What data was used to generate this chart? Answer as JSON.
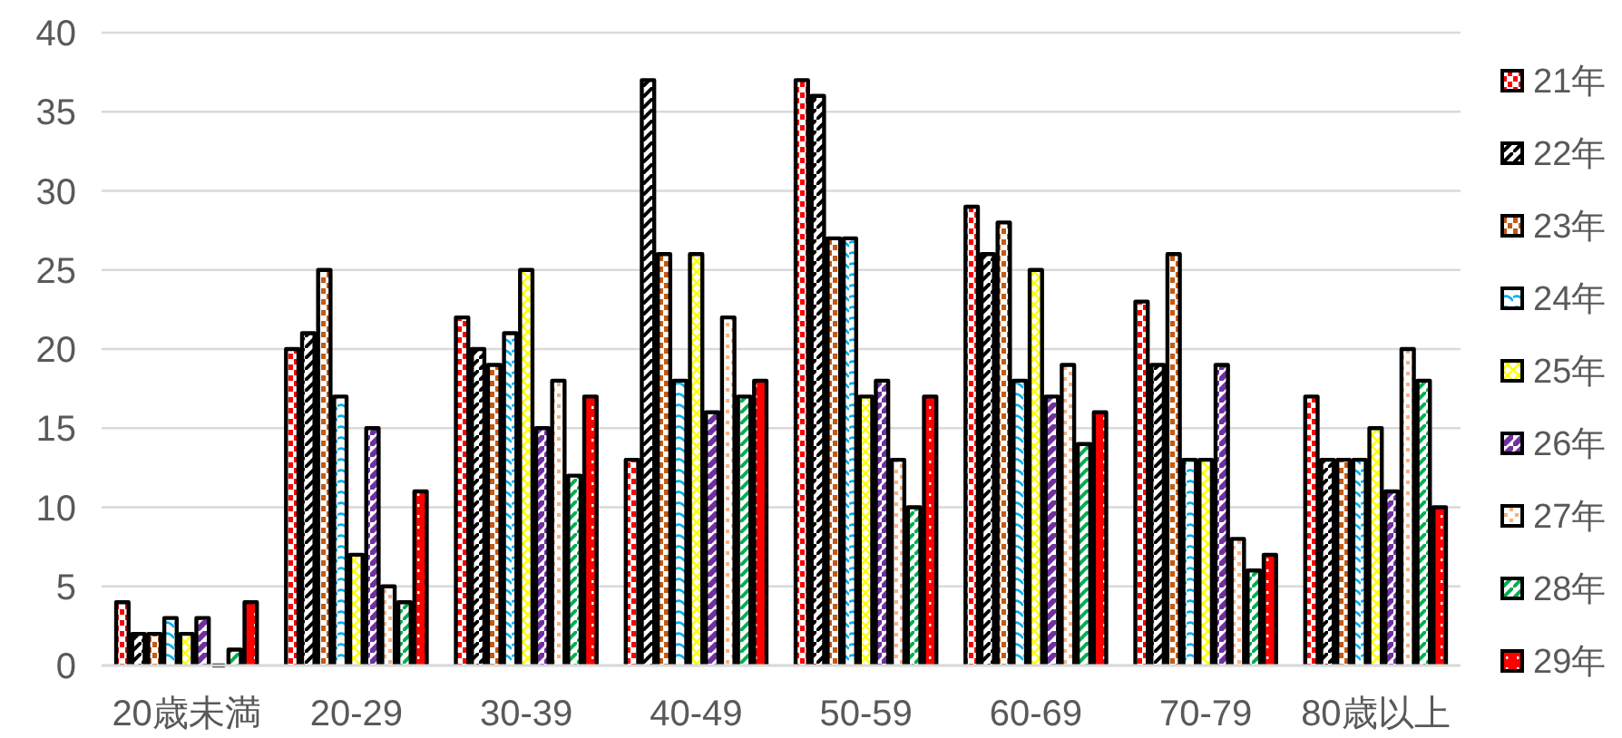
{
  "chart_data": {
    "type": "bar",
    "categories": [
      "20歳未満",
      "20-29",
      "30-39",
      "40-49",
      "50-59",
      "60-69",
      "70-79",
      "80歳以上"
    ],
    "series": [
      {
        "name": "21年",
        "color": "#ff0000",
        "values": [
          4,
          20,
          22,
          13,
          37,
          29,
          23,
          17
        ]
      },
      {
        "name": "22年",
        "color": "#000000",
        "values": [
          2,
          21,
          20,
          37,
          36,
          26,
          19,
          13
        ]
      },
      {
        "name": "23年",
        "color": "#c55a11",
        "values": [
          2,
          25,
          19,
          26,
          27,
          28,
          26,
          13
        ]
      },
      {
        "name": "24年",
        "color": "#00b0f0",
        "values": [
          3,
          17,
          21,
          18,
          27,
          18,
          13,
          13
        ]
      },
      {
        "name": "25年",
        "color": "#ffff00",
        "values": [
          2,
          7,
          25,
          26,
          17,
          25,
          13,
          15
        ]
      },
      {
        "name": "26年",
        "color": "#7030a0",
        "values": [
          3,
          15,
          15,
          16,
          18,
          17,
          19,
          11
        ]
      },
      {
        "name": "27年",
        "color": "#f4b183",
        "values": [
          0,
          5,
          18,
          22,
          13,
          19,
          8,
          20
        ]
      },
      {
        "name": "28年",
        "color": "#00b050",
        "values": [
          1,
          4,
          12,
          17,
          10,
          14,
          6,
          18
        ]
      },
      {
        "name": "29年",
        "color": "#ff0000",
        "values": [
          4,
          11,
          17,
          18,
          17,
          16,
          7,
          10
        ]
      }
    ],
    "ylim": [
      0,
      40
    ],
    "yticks": [
      0,
      5,
      10,
      15,
      20,
      25,
      30,
      35,
      40
    ],
    "grid": "y",
    "legend": "right"
  }
}
